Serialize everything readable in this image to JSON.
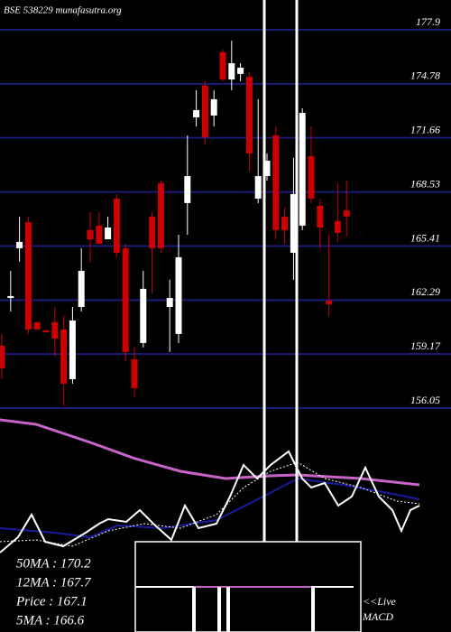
{
  "chart_data": {
    "type": "candlestick",
    "title": "BSE 538229 munafasutra.org",
    "series": [
      {
        "open": [
          159.65,
          162.41,
          165.28,
          166.79,
          161.01,
          160.54,
          161.01,
          160.59,
          157.72,
          161.89,
          166.33,
          166.59,
          165.8,
          168.15,
          165.28,
          158.87,
          159.81,
          167.11,
          169.04,
          161.89,
          160.33,
          167.89,
          172.84,
          174.67,
          172.95,
          176.6,
          175.03,
          175.35,
          175.19,
          168.15,
          169.45,
          171.8,
          167.11,
          165.02,
          166.59,
          170.6,
          167.73,
          162.26,
          166.85,
          167.47
        ],
        "high": [
          160.33,
          163.98,
          167.11,
          167.11,
          161.01,
          160.54,
          161.89,
          161.37,
          161.89,
          165.28,
          167.37,
          167.37,
          167.11,
          168.41,
          165.54,
          159.55,
          163.98,
          167.37,
          169.19,
          163.46,
          166.06,
          171.8,
          174.41,
          174.93,
          174.41,
          176.75,
          177.27,
          175.97,
          175.45,
          173.89,
          170.76,
          172.32,
          167.63,
          170.5,
          173.36,
          172.32,
          168.15,
          166.06,
          169.04,
          169.19
        ],
        "low": [
          157.72,
          161.63,
          164.5,
          160.33,
          160.59,
          160.43,
          159.03,
          156.16,
          157.46,
          161.63,
          164.5,
          165.54,
          165.8,
          164.76,
          158.77,
          156.68,
          159.55,
          162.68,
          165.02,
          159.29,
          159.81,
          166.06,
          172.32,
          171.28,
          172.32,
          174.93,
          174.41,
          174.93,
          169.71,
          167.89,
          169.19,
          165.8,
          165.54,
          163.46,
          166.33,
          167.89,
          165.28,
          161.37,
          165.65,
          165.96
        ],
        "close": [
          158.35,
          162.52,
          165.65,
          160.59,
          160.59,
          160.43,
          160.07,
          157.46,
          161.11,
          163.98,
          165.8,
          165.54,
          166.48,
          165.02,
          159.29,
          157.2,
          162.94,
          165.28,
          165.28,
          162.41,
          164.76,
          169.45,
          173.26,
          171.7,
          173.89,
          175.03,
          175.97,
          175.71,
          170.76,
          169.45,
          170.34,
          166.33,
          166.33,
          168.41,
          173.1,
          168.15,
          166.48,
          162.05,
          166.17,
          167.11
        ]
      }
    ],
    "up_color": "#ffffff",
    "down_color": "#cc0000",
    "grid_color": "#1b1b78",
    "ylim": [
      156.05,
      177.9
    ],
    "yticks": [
      177.9,
      174.78,
      171.66,
      168.53,
      165.41,
      162.29,
      159.17,
      156.05
    ],
    "grid": true,
    "stats": [
      "50MA : 170.2",
      "12MA : 167.7",
      "Price : 167.1",
      "5MA : 166.6"
    ],
    "macd_label": [
      "<<Live",
      "MACD"
    ]
  }
}
